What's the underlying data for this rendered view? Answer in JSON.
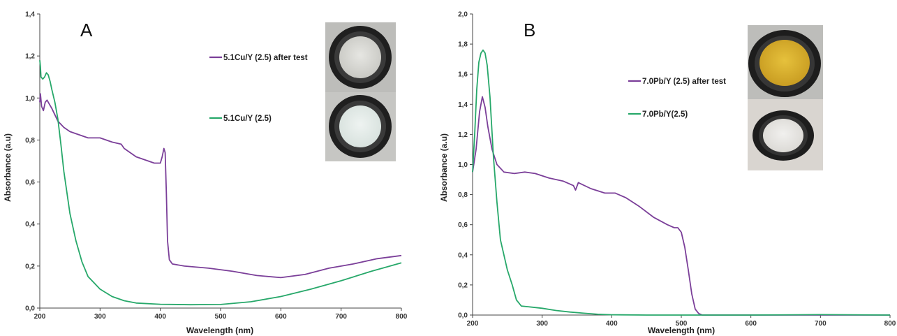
{
  "colors": {
    "purple": "#7b3f99",
    "green": "#27a86a",
    "axis": "#444444"
  },
  "chart_data": [
    {
      "type": "line",
      "panel_label": "A",
      "xlabel": "Wavelength (nm)",
      "ylabel": "Absorbance (a.u)",
      "xlim": [
        200,
        800
      ],
      "ylim": [
        0,
        1.4
      ],
      "x_ticks": [
        "200",
        "300",
        "400",
        "500",
        "600",
        "700",
        "800"
      ],
      "y_ticks": [
        "0,0",
        "0,2",
        "0,4",
        "0,6",
        "0,8",
        "1,0",
        "1,2",
        "1,4"
      ],
      "legend_placement": "top-right",
      "photos": [
        "sample-photo-after-test",
        "sample-photo-fresh"
      ],
      "series": [
        {
          "name": "5.1Cu/Y (2.5) after test",
          "color": "purple",
          "points": [
            [
              200,
              0.98
            ],
            [
              201,
              1.02
            ],
            [
              203,
              0.96
            ],
            [
              206,
              0.94
            ],
            [
              209,
              0.98
            ],
            [
              212,
              0.99
            ],
            [
              216,
              0.97
            ],
            [
              220,
              0.95
            ],
            [
              225,
              0.92
            ],
            [
              230,
              0.89
            ],
            [
              240,
              0.86
            ],
            [
              250,
              0.84
            ],
            [
              260,
              0.83
            ],
            [
              280,
              0.81
            ],
            [
              300,
              0.81
            ],
            [
              320,
              0.79
            ],
            [
              335,
              0.78
            ],
            [
              340,
              0.76
            ],
            [
              345,
              0.75
            ],
            [
              360,
              0.72
            ],
            [
              380,
              0.7
            ],
            [
              390,
              0.69
            ],
            [
              400,
              0.69
            ],
            [
              403,
              0.72
            ],
            [
              406,
              0.76
            ],
            [
              408,
              0.74
            ],
            [
              410,
              0.55
            ],
            [
              412,
              0.32
            ],
            [
              415,
              0.23
            ],
            [
              420,
              0.21
            ],
            [
              440,
              0.2
            ],
            [
              480,
              0.19
            ],
            [
              520,
              0.175
            ],
            [
              560,
              0.155
            ],
            [
              600,
              0.145
            ],
            [
              640,
              0.16
            ],
            [
              680,
              0.19
            ],
            [
              720,
              0.21
            ],
            [
              760,
              0.235
            ],
            [
              800,
              0.25
            ]
          ]
        },
        {
          "name": "5.1Cu/Y (2.5)",
          "color": "green",
          "points": [
            [
              200,
              1.18
            ],
            [
              201,
              1.15
            ],
            [
              202,
              1.1
            ],
            [
              205,
              1.09
            ],
            [
              208,
              1.1
            ],
            [
              211,
              1.12
            ],
            [
              214,
              1.11
            ],
            [
              217,
              1.08
            ],
            [
              220,
              1.04
            ],
            [
              225,
              0.98
            ],
            [
              230,
              0.9
            ],
            [
              235,
              0.78
            ],
            [
              240,
              0.65
            ],
            [
              250,
              0.45
            ],
            [
              260,
              0.32
            ],
            [
              270,
              0.22
            ],
            [
              280,
              0.15
            ],
            [
              300,
              0.09
            ],
            [
              320,
              0.055
            ],
            [
              340,
              0.035
            ],
            [
              360,
              0.024
            ],
            [
              400,
              0.018
            ],
            [
              450,
              0.016
            ],
            [
              500,
              0.017
            ],
            [
              550,
              0.03
            ],
            [
              600,
              0.055
            ],
            [
              650,
              0.09
            ],
            [
              700,
              0.13
            ],
            [
              750,
              0.175
            ],
            [
              800,
              0.215
            ]
          ]
        }
      ]
    },
    {
      "type": "line",
      "panel_label": "B",
      "xlabel": "Wavelength (nm)",
      "ylabel": "Absorbance (a.u)",
      "xlim": [
        200,
        800
      ],
      "ylim": [
        0,
        2.0
      ],
      "x_ticks": [
        "200",
        "300",
        "400",
        "500",
        "600",
        "700",
        "800"
      ],
      "y_ticks": [
        "0,0",
        "0,2",
        "0,4",
        "0,6",
        "0,8",
        "1,0",
        "1,2",
        "1,4",
        "1,6",
        "1,8",
        "2,0"
      ],
      "legend_placement": "top-right",
      "photos": [
        "sample-photo-after-test",
        "sample-photo-fresh"
      ],
      "series": [
        {
          "name": "7.0Pb/Y (2.5) after test",
          "color": "purple",
          "points": [
            [
              200,
              0.95
            ],
            [
              205,
              1.1
            ],
            [
              210,
              1.35
            ],
            [
              214,
              1.45
            ],
            [
              218,
              1.38
            ],
            [
              222,
              1.25
            ],
            [
              228,
              1.1
            ],
            [
              235,
              1.0
            ],
            [
              245,
              0.95
            ],
            [
              260,
              0.94
            ],
            [
              275,
              0.95
            ],
            [
              290,
              0.94
            ],
            [
              310,
              0.91
            ],
            [
              330,
              0.89
            ],
            [
              345,
              0.86
            ],
            [
              348,
              0.83
            ],
            [
              352,
              0.88
            ],
            [
              370,
              0.84
            ],
            [
              390,
              0.81
            ],
            [
              405,
              0.81
            ],
            [
              420,
              0.78
            ],
            [
              440,
              0.72
            ],
            [
              460,
              0.65
            ],
            [
              480,
              0.6
            ],
            [
              490,
              0.58
            ],
            [
              495,
              0.58
            ],
            [
              500,
              0.55
            ],
            [
              505,
              0.45
            ],
            [
              510,
              0.3
            ],
            [
              515,
              0.14
            ],
            [
              520,
              0.04
            ],
            [
              525,
              0.01
            ],
            [
              530,
              0.0
            ],
            [
              560,
              0.0
            ],
            [
              600,
              0.0
            ],
            [
              700,
              0.0
            ],
            [
              800,
              0.0
            ]
          ]
        },
        {
          "name": "7.0Pb/Y(2.5)",
          "color": "green",
          "points": [
            [
              200,
              0.95
            ],
            [
              203,
              1.2
            ],
            [
              206,
              1.5
            ],
            [
              209,
              1.68
            ],
            [
              212,
              1.74
            ],
            [
              215,
              1.76
            ],
            [
              218,
              1.74
            ],
            [
              221,
              1.66
            ],
            [
              225,
              1.45
            ],
            [
              230,
              1.05
            ],
            [
              235,
              0.75
            ],
            [
              240,
              0.5
            ],
            [
              250,
              0.3
            ],
            [
              257,
              0.2
            ],
            [
              263,
              0.1
            ],
            [
              270,
              0.06
            ],
            [
              280,
              0.055
            ],
            [
              300,
              0.045
            ],
            [
              320,
              0.03
            ],
            [
              340,
              0.02
            ],
            [
              360,
              0.012
            ],
            [
              380,
              0.005
            ],
            [
              400,
              0.002
            ],
            [
              450,
              0.0
            ],
            [
              500,
              0.0
            ],
            [
              600,
              0.0
            ],
            [
              700,
              0.003
            ],
            [
              800,
              0.0
            ]
          ]
        }
      ]
    }
  ]
}
